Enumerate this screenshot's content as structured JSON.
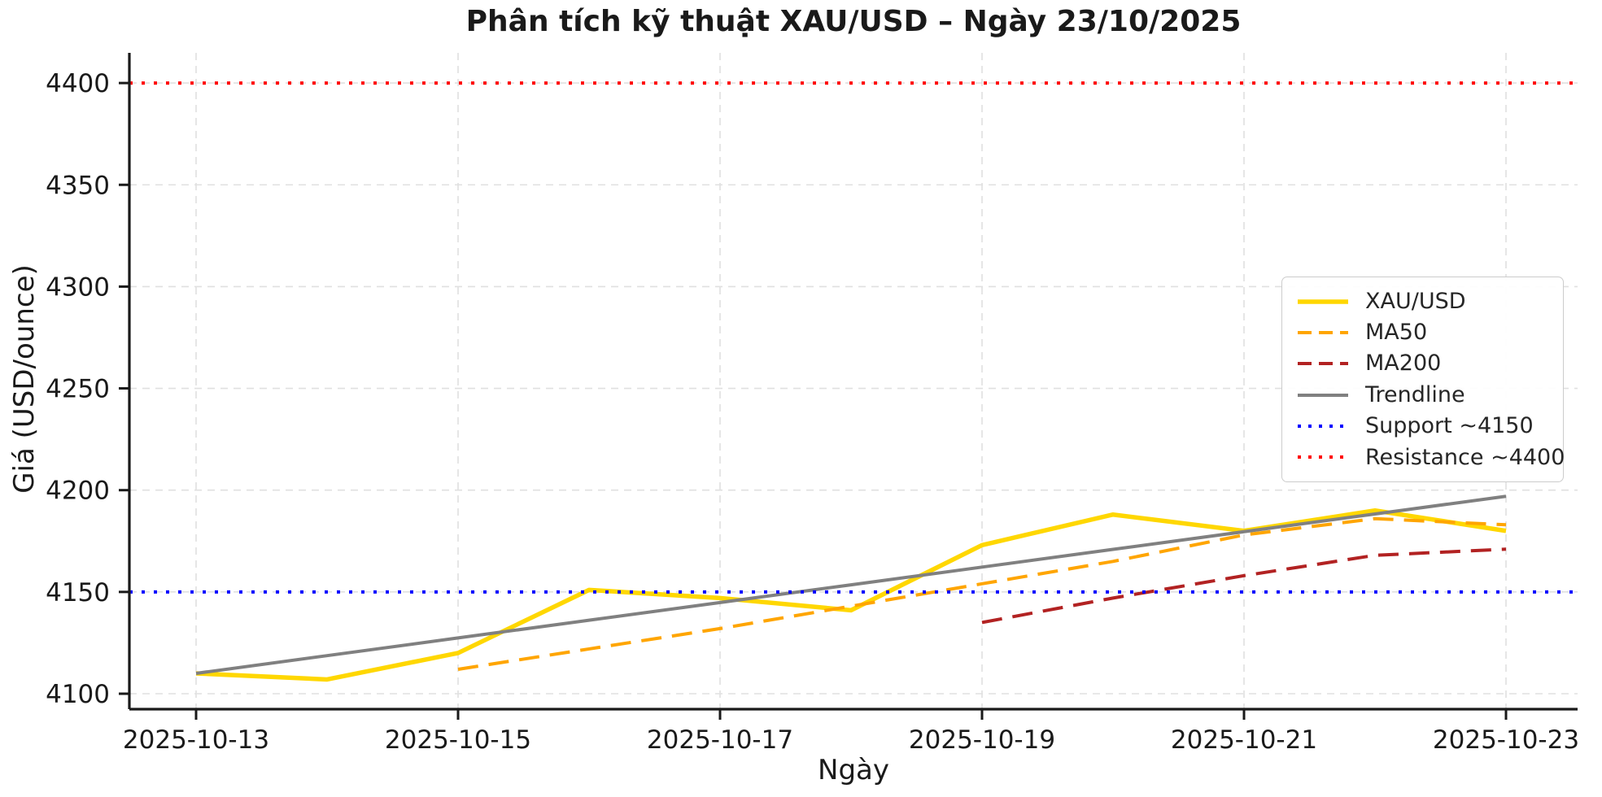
{
  "chart_data": {
    "type": "line",
    "title": "Phân tích kỹ thuật XAU/USD – Ngày 23/10/2025",
    "xlabel": "Ngày",
    "ylabel": "Giá (USD/ounce)",
    "dates": [
      "2025-10-13",
      "2025-10-14",
      "2025-10-15",
      "2025-10-16",
      "2025-10-17",
      "2025-10-18",
      "2025-10-19",
      "2025-10-20",
      "2025-10-21",
      "2025-10-22",
      "2025-10-23"
    ],
    "x_tick_labels": [
      "2025-10-13",
      "2025-10-15",
      "2025-10-17",
      "2025-10-19",
      "2025-10-21",
      "2025-10-23"
    ],
    "y_ticks": [
      4100,
      4150,
      4200,
      4250,
      4300,
      4350,
      4400
    ],
    "ylim": [
      4092,
      4415
    ],
    "grid": true,
    "legend_position": "center right",
    "series": [
      {
        "name": "XAU/USD",
        "color": "#FFD700",
        "style": "solid",
        "width": 5.5,
        "start_index": 0,
        "values": [
          4110,
          4107,
          4120,
          4151,
          4147,
          4141,
          4173,
          4188,
          4180,
          4190,
          4180
        ]
      },
      {
        "name": "MA50",
        "color": "#FFA500",
        "style": "dashed",
        "width": 4,
        "start_index": 2,
        "values": [
          4112,
          4122,
          4132,
          4143,
          4154,
          4165,
          4178,
          4186,
          4183
        ]
      },
      {
        "name": "MA200",
        "color": "#B22222",
        "style": "dashed",
        "width": 4,
        "start_index": 6,
        "values": [
          4135,
          4147,
          4158,
          4168,
          4171
        ]
      },
      {
        "name": "Trendline",
        "color": "#808080",
        "style": "solid",
        "width": 4,
        "start_index": 0,
        "values": [
          4110,
          4118.7,
          4127.4,
          4136.1,
          4144.8,
          4153.5,
          4162.2,
          4170.9,
          4179.6,
          4188.3,
          4197
        ]
      }
    ],
    "hlines": [
      {
        "name": "Support ~4150",
        "value": 4150,
        "color": "#0000FF",
        "style": "dotted",
        "width": 4
      },
      {
        "name": "Resistance ~4400",
        "value": 4400,
        "color": "#FF0000",
        "style": "dotted",
        "width": 4
      }
    ],
    "legend": [
      "XAU/USD",
      "MA50",
      "MA200",
      "Trendline",
      "Support ~4150",
      "Resistance ~4400"
    ]
  },
  "colors": {
    "grid": "#e0e0e0",
    "spine": "#1a1a1a",
    "tick_text": "#1a1a1a"
  }
}
